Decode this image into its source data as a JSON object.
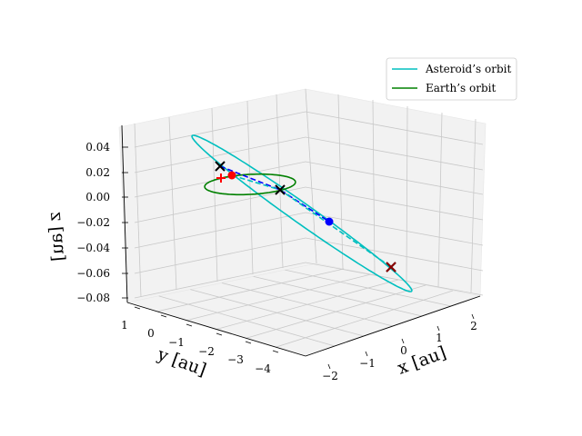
{
  "chart_data": {
    "type": "line",
    "projection": "3d",
    "x_axis": {
      "label": "x [au]",
      "ticks": [
        -2,
        -1,
        0,
        1,
        2
      ],
      "tick_labels": [
        "−2",
        "−1",
        "0",
        "1",
        "2"
      ]
    },
    "y_axis": {
      "label": "y [au]",
      "ticks": [
        1,
        0,
        -1,
        -2,
        -3,
        -4
      ],
      "tick_labels": [
        "1",
        "0",
        "−1",
        "−2",
        "−3",
        "−4"
      ]
    },
    "z_axis": {
      "label": "z [au]",
      "ticks": [
        0.04,
        0.02,
        0.0,
        -0.02,
        -0.04,
        -0.06,
        -0.08
      ],
      "tick_labels": [
        "0.04",
        "0.02",
        "0.00",
        "−0.02",
        "−0.04",
        "−0.06",
        "−0.08"
      ]
    },
    "grid": true,
    "legend_position": "top-right",
    "series": [
      {
        "name": "Asteroid’s orbit",
        "color": "#00bfbf",
        "style": "solid",
        "kind": "ellipse"
      },
      {
        "name": "Earth’s orbit",
        "color": "#008000",
        "style": "solid",
        "kind": "ellipse"
      },
      {
        "color": "#0000ff",
        "style": "dashed",
        "kind": "segment"
      },
      {
        "color": "#00bfbf",
        "style": "dashed",
        "kind": "segment"
      }
    ],
    "markers": [
      {
        "symbol": "x",
        "color": "#000000"
      },
      {
        "symbol": "x",
        "color": "#000000"
      },
      {
        "symbol": "x",
        "color": "#000000"
      },
      {
        "symbol": "circle",
        "color": "#ff0000"
      },
      {
        "symbol": "circle",
        "color": "#0000ff"
      },
      {
        "symbol": "plus",
        "color": "#ff0000"
      },
      {
        "symbol": "x",
        "color": "#8b0000"
      }
    ]
  }
}
